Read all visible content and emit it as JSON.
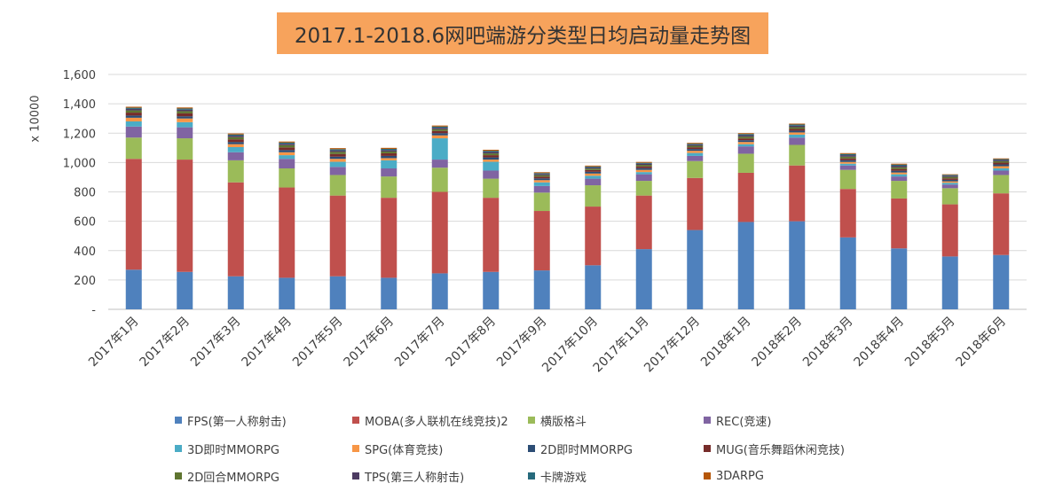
{
  "title": "2017.1-2018.6网吧端游分类型日均启动量走势图",
  "chart_data": {
    "type": "bar",
    "stacked": true,
    "ylabel": "x 10000",
    "ylim": [
      0,
      1600
    ],
    "yticks": [
      {
        "value": 0,
        "label": "-"
      },
      {
        "value": 200,
        "label": "200"
      },
      {
        "value": 400,
        "label": "400"
      },
      {
        "value": 600,
        "label": "600"
      },
      {
        "value": 800,
        "label": "800"
      },
      {
        "value": 1000,
        "label": "1,000"
      },
      {
        "value": 1200,
        "label": "1,200"
      },
      {
        "value": 1400,
        "label": "1,400"
      },
      {
        "value": 1600,
        "label": "1,600"
      }
    ],
    "grid": true,
    "legend_position": "bottom",
    "categories": [
      "2017年1月",
      "2017年2月",
      "2017年3月",
      "2017年4月",
      "2017年5月",
      "2017年6月",
      "2017年7月",
      "2017年8月",
      "2017年9月",
      "2017年10月",
      "2017年11月",
      "2017年12月",
      "2018年1月",
      "2018年2月",
      "2018年3月",
      "2018年4月",
      "2018年5月",
      "2018年6月"
    ],
    "series": [
      {
        "name": "FPS(第一人称射击)",
        "color": "#4F81BD",
        "values": [
          270,
          255,
          225,
          215,
          225,
          215,
          245,
          255,
          265,
          300,
          410,
          540,
          595,
          600,
          490,
          415,
          360,
          370
        ]
      },
      {
        "name": "MOBA(多人联机在线竞技)2",
        "color": "#C0504D",
        "values": [
          755,
          765,
          640,
          615,
          550,
          545,
          555,
          505,
          405,
          400,
          365,
          355,
          335,
          380,
          330,
          340,
          355,
          420
        ]
      },
      {
        "name": "横版格斗",
        "color": "#9BBB59",
        "values": [
          145,
          145,
          150,
          130,
          140,
          145,
          165,
          130,
          125,
          145,
          100,
          115,
          130,
          140,
          130,
          120,
          110,
          125
        ]
      },
      {
        "name": "REC(竞速)",
        "color": "#8064A2",
        "values": [
          75,
          75,
          55,
          65,
          55,
          55,
          55,
          55,
          45,
          45,
          45,
          35,
          50,
          50,
          30,
          30,
          25,
          30
        ]
      },
      {
        "name": "3D即时MMORPG",
        "color": "#4BACC6",
        "values": [
          35,
          35,
          35,
          25,
          35,
          55,
          145,
          60,
          25,
          20,
          15,
          20,
          15,
          20,
          12,
          15,
          12,
          15
        ]
      },
      {
        "name": "SPG(体育竞技)",
        "color": "#F79646",
        "values": [
          25,
          25,
          20,
          20,
          20,
          15,
          20,
          15,
          15,
          15,
          15,
          15,
          15,
          15,
          12,
          12,
          10,
          15
        ]
      },
      {
        "name": "2D即时MMORPG",
        "color": "#2C4D75",
        "values": [
          15,
          15,
          15,
          15,
          15,
          15,
          15,
          15,
          12,
          12,
          12,
          12,
          12,
          12,
          12,
          12,
          10,
          12
        ]
      },
      {
        "name": "MUG(音乐舞蹈休闲竞技)",
        "color": "#772C2A",
        "values": [
          20,
          20,
          18,
          18,
          18,
          18,
          15,
          15,
          12,
          12,
          12,
          12,
          12,
          12,
          12,
          12,
          10,
          12
        ]
      },
      {
        "name": "2D回合MMORPG",
        "color": "#5F7530",
        "values": [
          15,
          15,
          15,
          15,
          15,
          12,
          12,
          12,
          10,
          10,
          10,
          10,
          12,
          12,
          12,
          12,
          10,
          10
        ]
      },
      {
        "name": "TPS(第三人称射击)",
        "color": "#4D3B62",
        "values": [
          10,
          10,
          10,
          10,
          10,
          10,
          10,
          10,
          8,
          8,
          8,
          8,
          10,
          10,
          10,
          10,
          8,
          8
        ]
      },
      {
        "name": "卡牌游戏",
        "color": "#276A7C",
        "values": [
          8,
          8,
          8,
          8,
          8,
          8,
          8,
          8,
          6,
          6,
          6,
          6,
          8,
          8,
          8,
          8,
          6,
          6
        ]
      },
      {
        "name": "3DARPG",
        "color": "#B65708",
        "values": [
          7,
          7,
          7,
          7,
          7,
          7,
          7,
          7,
          6,
          6,
          6,
          6,
          6,
          6,
          6,
          6,
          4,
          5
        ]
      }
    ]
  }
}
